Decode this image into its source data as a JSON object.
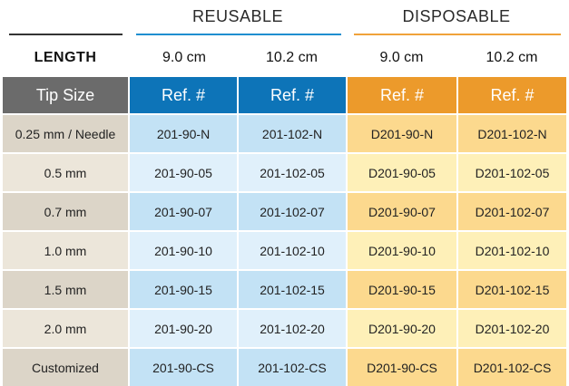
{
  "groups": {
    "reusable": "REUSABLE",
    "disposable": "DISPOSABLE"
  },
  "length_row": {
    "label": "LENGTH",
    "values": [
      "9.0 cm",
      "10.2 cm",
      "9.0 cm",
      "10.2 cm"
    ]
  },
  "table": {
    "headers": [
      "Tip Size",
      "Ref. #",
      "Ref. #",
      "Ref. #",
      "Ref. #"
    ],
    "rows": [
      [
        "0.25 mm / Needle",
        "201-90-N",
        "201-102-N",
        "D201-90-N",
        "D201-102-N"
      ],
      [
        "0.5 mm",
        "201-90-05",
        "201-102-05",
        "D201-90-05",
        "D201-102-05"
      ],
      [
        "0.7 mm",
        "201-90-07",
        "201-102-07",
        "D201-90-07",
        "D201-102-07"
      ],
      [
        "1.0 mm",
        "201-90-10",
        "201-102-10",
        "D201-90-10",
        "D201-102-10"
      ],
      [
        "1.5 mm",
        "201-90-15",
        "201-102-15",
        "D201-90-15",
        "D201-102-15"
      ],
      [
        "2.0 mm",
        "201-90-20",
        "201-102-20",
        "D201-90-20",
        "D201-102-20"
      ],
      [
        "Customized",
        "201-90-CS",
        "201-102-CS",
        "D201-90-CS",
        "D201-102-CS"
      ]
    ]
  },
  "colors": {
    "header_gray": "#6b6b6b",
    "header_blue": "#0d74b8",
    "header_orange": "#ec9a2b",
    "rule_black": "#333333",
    "rule_blue": "#1f8fd0",
    "rule_orange": "#f0a23a",
    "tip_dark": "#dcd5c8",
    "tip_light": "#ece6da",
    "blue_dark": "#c3e2f5",
    "blue_light": "#e0f0fb",
    "orange_dark": "#fcd98e",
    "orange_light": "#fef0b8"
  }
}
